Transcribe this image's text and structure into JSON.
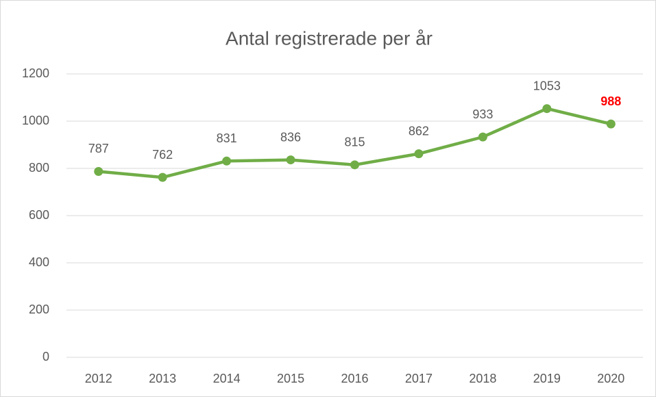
{
  "chart_data": {
    "type": "line",
    "title": "Antal registrerade per år",
    "categories": [
      "2012",
      "2013",
      "2014",
      "2015",
      "2016",
      "2017",
      "2018",
      "2019",
      "2020"
    ],
    "series": [
      {
        "name": "Antal registrerade",
        "color": "#70ad47",
        "values": [
          787,
          762,
          831,
          836,
          815,
          862,
          933,
          1053,
          988
        ]
      }
    ],
    "ylim": [
      0,
      1200
    ],
    "yticks": [
      0,
      200,
      400,
      600,
      800,
      1000,
      1200
    ],
    "grid": true,
    "highlight_index": 8,
    "highlight_color": "#ff0000"
  }
}
